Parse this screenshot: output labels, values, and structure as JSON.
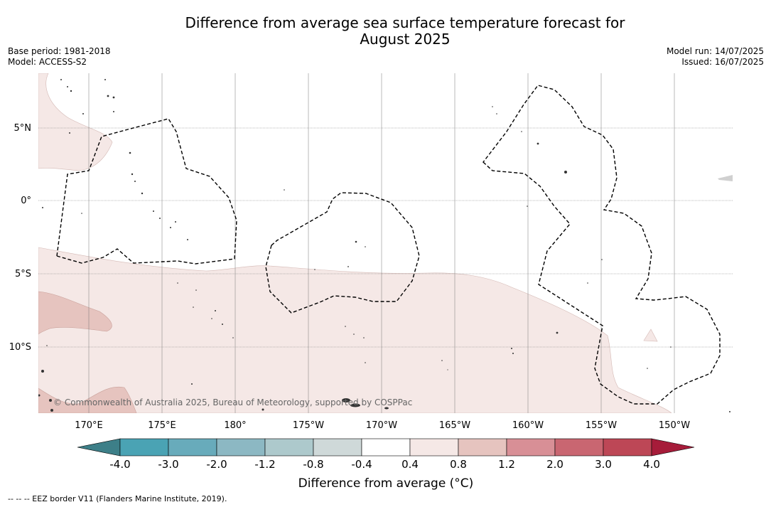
{
  "title_line1": "Difference from average sea surface temperature forecast for",
  "title_line2": "August 2025",
  "base_period": "Base period: 1981-2018",
  "model": "Model: ACCESS-S2",
  "model_run": "Model run: 14/07/2025",
  "issued": "Issued: 16/07/2025",
  "copyright": "© Commonwealth of Australia 2025, Bureau of Meteorology, supported by COSPPac",
  "footer_note": "-- -- -- EEZ border V11 (Flanders Marine Institute, 2019).",
  "lat_labels": [
    "5°N",
    "0°",
    "5°S",
    "10°S"
  ],
  "lon_labels": [
    "170°E",
    "175°E",
    "180°",
    "175°W",
    "170°W",
    "165°W",
    "160°W",
    "155°W",
    "150°W"
  ],
  "colorbar": {
    "title": "Difference from average (°C)",
    "tick_labels": [
      "-4.0",
      "-3.0",
      "-2.0",
      "-1.2",
      "-0.8",
      "-0.4",
      "0.4",
      "0.8",
      "1.2",
      "2.0",
      "3.0",
      "4.0"
    ],
    "colors": {
      "below": "#3d7f88",
      "bins": [
        "#4aa3b4",
        "#68abbb",
        "#8cb8c3",
        "#adc9cc",
        "#cfd9d9",
        "#ffffff",
        "#f5e8e6",
        "#e6c4bf",
        "#d88f96",
        "#c96671",
        "#bd4756"
      ],
      "above": "#a61c3a"
    }
  }
}
